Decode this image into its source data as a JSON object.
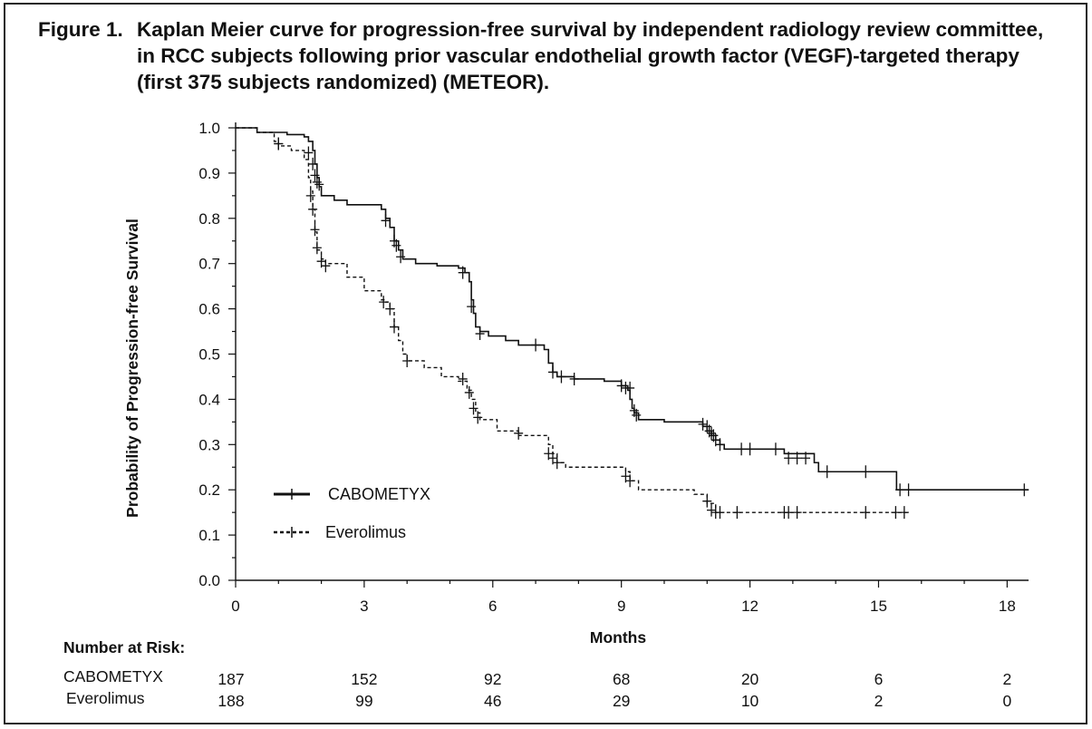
{
  "figure": {
    "label": "Figure 1.",
    "caption": "Kaplan Meier curve for progression-free survival by independent radiology review committee, in RCC subjects following prior vascular endothelial growth factor (VEGF)-targeted therapy (first 375 subjects randomized) (METEOR)."
  },
  "chart_data": {
    "type": "line",
    "title": "Kaplan Meier curve for progression-free survival by independent radiology review committee, in RCC subjects following prior vascular endothelial growth factor (VEGF)-targeted therapy (first 375 subjects randomized) (METEOR).",
    "xlabel": "Months",
    "ylabel": "Probability of Progression-free Survival",
    "xlim": [
      0,
      18.5
    ],
    "ylim": [
      0,
      1.0
    ],
    "xticks": [
      "0",
      "3",
      "6",
      "9",
      "12",
      "15",
      "18"
    ],
    "yticks": [
      "0.0",
      "0.1",
      "0.2",
      "0.3",
      "0.4",
      "0.5",
      "0.6",
      "0.7",
      "0.8",
      "0.9",
      "1.0"
    ],
    "step": true,
    "series": [
      {
        "name": "CABOMETYX",
        "line_style": "solid",
        "color": "#111111",
        "points": [
          [
            0,
            1.0
          ],
          [
            0.5,
            0.99
          ],
          [
            1.2,
            0.985
          ],
          [
            1.6,
            0.98
          ],
          [
            1.7,
            0.97
          ],
          [
            1.8,
            0.95
          ],
          [
            1.85,
            0.92
          ],
          [
            1.9,
            0.89
          ],
          [
            1.95,
            0.87
          ],
          [
            2.0,
            0.85
          ],
          [
            2.3,
            0.84
          ],
          [
            2.6,
            0.83
          ],
          [
            3.0,
            0.83
          ],
          [
            3.4,
            0.82
          ],
          [
            3.5,
            0.8
          ],
          [
            3.6,
            0.78
          ],
          [
            3.7,
            0.75
          ],
          [
            3.8,
            0.73
          ],
          [
            3.9,
            0.71
          ],
          [
            4.2,
            0.7
          ],
          [
            4.7,
            0.695
          ],
          [
            5.2,
            0.69
          ],
          [
            5.35,
            0.68
          ],
          [
            5.45,
            0.66
          ],
          [
            5.5,
            0.62
          ],
          [
            5.55,
            0.59
          ],
          [
            5.6,
            0.56
          ],
          [
            5.7,
            0.55
          ],
          [
            5.9,
            0.54
          ],
          [
            6.3,
            0.53
          ],
          [
            6.6,
            0.52
          ],
          [
            7.1,
            0.52
          ],
          [
            7.2,
            0.51
          ],
          [
            7.3,
            0.48
          ],
          [
            7.4,
            0.46
          ],
          [
            7.5,
            0.45
          ],
          [
            7.9,
            0.445
          ],
          [
            8.6,
            0.44
          ],
          [
            9.0,
            0.43
          ],
          [
            9.15,
            0.42
          ],
          [
            9.2,
            0.4
          ],
          [
            9.25,
            0.38
          ],
          [
            9.3,
            0.37
          ],
          [
            9.4,
            0.355
          ],
          [
            10.0,
            0.35
          ],
          [
            10.9,
            0.34
          ],
          [
            11.0,
            0.33
          ],
          [
            11.1,
            0.32
          ],
          [
            11.2,
            0.31
          ],
          [
            11.3,
            0.3
          ],
          [
            11.4,
            0.29
          ],
          [
            12.5,
            0.29
          ],
          [
            12.8,
            0.28
          ],
          [
            13.5,
            0.26
          ],
          [
            13.6,
            0.24
          ],
          [
            15.4,
            0.24
          ],
          [
            15.42,
            0.2
          ],
          [
            18.5,
            0.2
          ]
        ],
        "censors": [
          [
            1.0,
            0.965
          ],
          [
            1.7,
            0.945
          ],
          [
            1.8,
            0.92
          ],
          [
            1.85,
            0.895
          ],
          [
            1.9,
            0.88
          ],
          [
            1.95,
            0.875
          ],
          [
            3.5,
            0.795
          ],
          [
            3.7,
            0.75
          ],
          [
            3.75,
            0.74
          ],
          [
            3.85,
            0.715
          ],
          [
            5.3,
            0.68
          ],
          [
            5.5,
            0.605
          ],
          [
            5.7,
            0.545
          ],
          [
            7.0,
            0.52
          ],
          [
            7.4,
            0.46
          ],
          [
            7.6,
            0.45
          ],
          [
            7.9,
            0.445
          ],
          [
            9.0,
            0.43
          ],
          [
            9.1,
            0.425
          ],
          [
            9.2,
            0.425
          ],
          [
            9.3,
            0.375
          ],
          [
            9.35,
            0.365
          ],
          [
            10.9,
            0.345
          ],
          [
            11.0,
            0.34
          ],
          [
            11.05,
            0.33
          ],
          [
            11.1,
            0.325
          ],
          [
            11.15,
            0.32
          ],
          [
            11.2,
            0.31
          ],
          [
            11.3,
            0.3
          ],
          [
            11.8,
            0.29
          ],
          [
            12.0,
            0.29
          ],
          [
            12.6,
            0.29
          ],
          [
            12.9,
            0.27
          ],
          [
            13.1,
            0.27
          ],
          [
            13.3,
            0.27
          ],
          [
            13.8,
            0.24
          ],
          [
            14.7,
            0.24
          ],
          [
            15.5,
            0.2
          ],
          [
            15.7,
            0.2
          ],
          [
            18.4,
            0.2
          ]
        ]
      },
      {
        "name": "Everolimus",
        "line_style": "dashed",
        "color": "#111111",
        "points": [
          [
            0,
            1.0
          ],
          [
            0.5,
            0.99
          ],
          [
            0.9,
            0.97
          ],
          [
            1.0,
            0.96
          ],
          [
            1.3,
            0.95
          ],
          [
            1.6,
            0.93
          ],
          [
            1.7,
            0.89
          ],
          [
            1.75,
            0.86
          ],
          [
            1.8,
            0.82
          ],
          [
            1.85,
            0.77
          ],
          [
            1.9,
            0.73
          ],
          [
            2.0,
            0.71
          ],
          [
            2.1,
            0.7
          ],
          [
            2.6,
            0.67
          ],
          [
            3.0,
            0.64
          ],
          [
            3.4,
            0.62
          ],
          [
            3.5,
            0.615
          ],
          [
            3.6,
            0.6
          ],
          [
            3.7,
            0.56
          ],
          [
            3.8,
            0.53
          ],
          [
            3.9,
            0.5
          ],
          [
            4.0,
            0.485
          ],
          [
            4.4,
            0.47
          ],
          [
            4.8,
            0.45
          ],
          [
            5.2,
            0.44
          ],
          [
            5.4,
            0.42
          ],
          [
            5.5,
            0.4
          ],
          [
            5.6,
            0.37
          ],
          [
            5.7,
            0.355
          ],
          [
            6.1,
            0.33
          ],
          [
            6.6,
            0.32
          ],
          [
            7.3,
            0.3
          ],
          [
            7.4,
            0.28
          ],
          [
            7.5,
            0.26
          ],
          [
            7.7,
            0.25
          ],
          [
            9.1,
            0.24
          ],
          [
            9.2,
            0.22
          ],
          [
            9.4,
            0.2
          ],
          [
            10.7,
            0.19
          ],
          [
            11.0,
            0.17
          ],
          [
            11.2,
            0.15
          ],
          [
            15.7,
            0.15
          ]
        ],
        "censors": [
          [
            1.0,
            0.965
          ],
          [
            1.75,
            0.85
          ],
          [
            1.8,
            0.82
          ],
          [
            1.85,
            0.775
          ],
          [
            1.9,
            0.735
          ],
          [
            2.0,
            0.705
          ],
          [
            2.1,
            0.695
          ],
          [
            3.45,
            0.615
          ],
          [
            3.6,
            0.6
          ],
          [
            3.7,
            0.56
          ],
          [
            4.0,
            0.485
          ],
          [
            5.3,
            0.445
          ],
          [
            5.45,
            0.415
          ],
          [
            5.55,
            0.38
          ],
          [
            5.65,
            0.36
          ],
          [
            6.6,
            0.325
          ],
          [
            7.3,
            0.28
          ],
          [
            7.4,
            0.27
          ],
          [
            7.5,
            0.26
          ],
          [
            9.1,
            0.23
          ],
          [
            9.2,
            0.22
          ],
          [
            11.0,
            0.175
          ],
          [
            11.1,
            0.155
          ],
          [
            11.2,
            0.15
          ],
          [
            11.3,
            0.15
          ],
          [
            11.7,
            0.15
          ],
          [
            12.8,
            0.15
          ],
          [
            12.9,
            0.15
          ],
          [
            13.1,
            0.15
          ],
          [
            14.7,
            0.15
          ],
          [
            15.4,
            0.15
          ],
          [
            15.6,
            0.15
          ]
        ]
      }
    ],
    "legend": [
      {
        "name": "CABOMETYX",
        "line_style": "solid"
      },
      {
        "name": "Everolimus",
        "line_style": "dashed"
      }
    ],
    "legend_position": "lower-left"
  },
  "risk_table": {
    "header": "Number at Risk:",
    "months": [
      0,
      3,
      6,
      9,
      12,
      15,
      18
    ],
    "rows": [
      {
        "name": "CABOMETYX",
        "values": [
          "187",
          "152",
          "92",
          "68",
          "20",
          "6",
          "2"
        ]
      },
      {
        "name": "Everolimus",
        "values": [
          "188",
          "99",
          "46",
          "29",
          "10",
          "2",
          "0"
        ]
      }
    ]
  }
}
